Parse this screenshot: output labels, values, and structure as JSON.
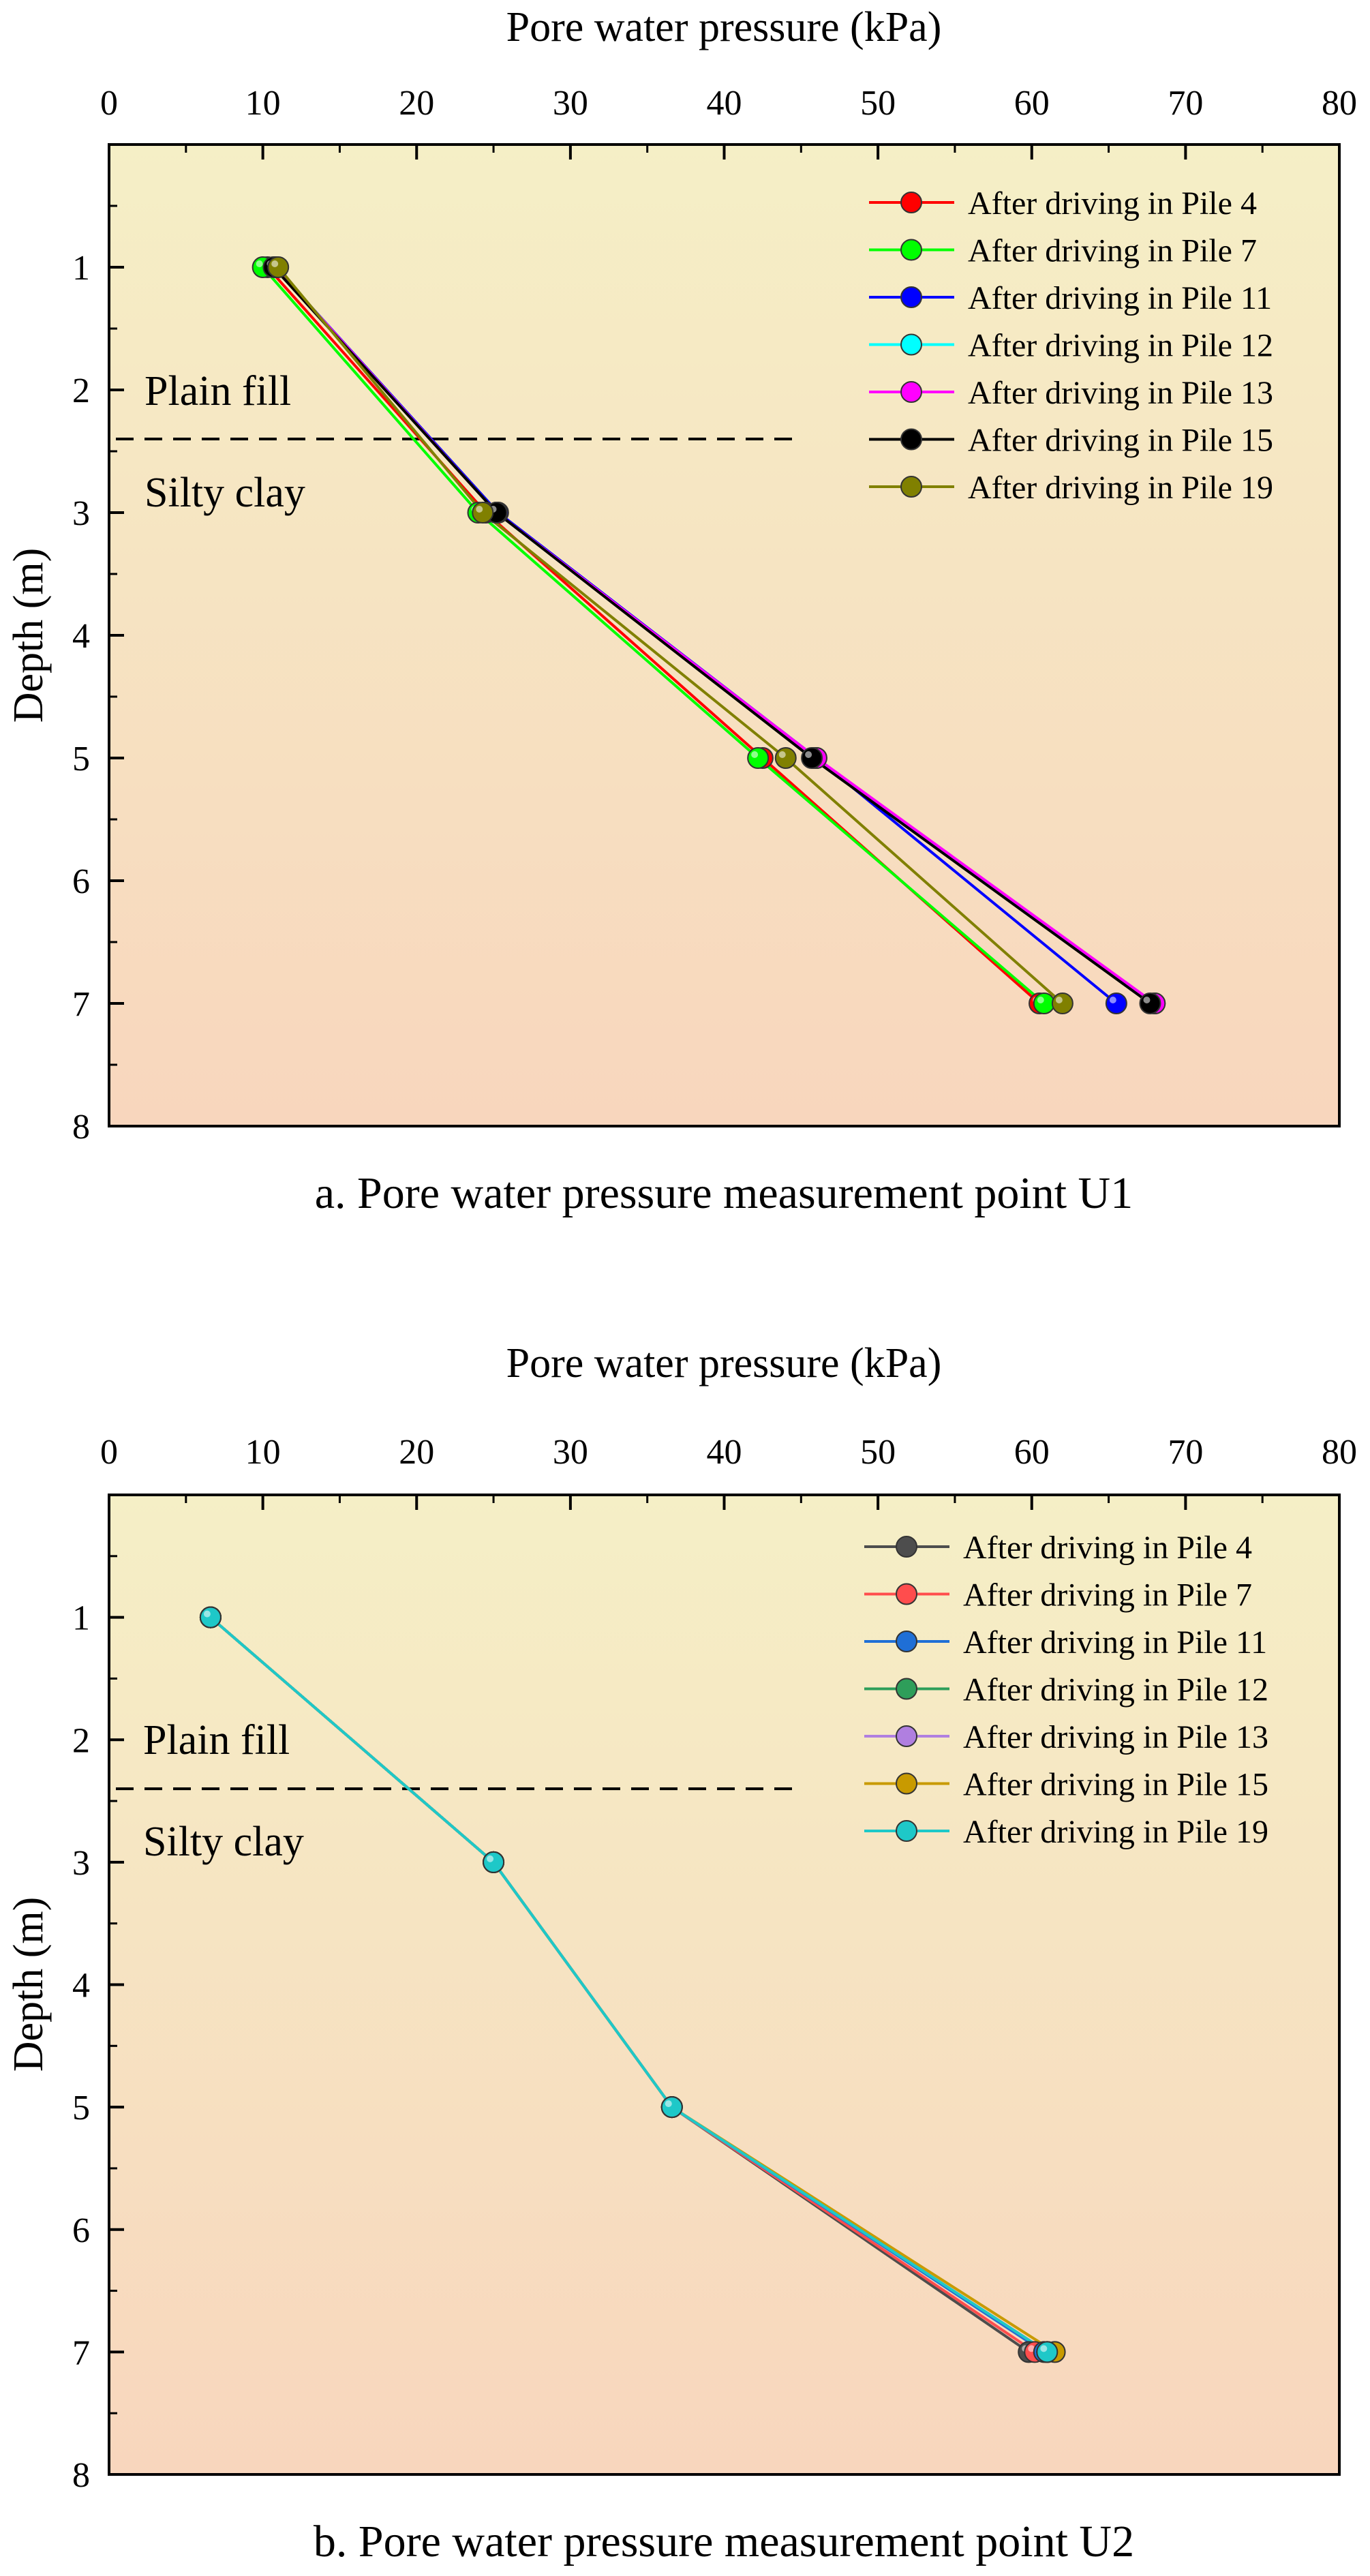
{
  "chart_data": [
    {
      "type": "line",
      "caption": "a. Pore water pressure measurement point U1",
      "xlabel": "Pore water pressure (kPa)",
      "ylabel": "Depth (m)",
      "xlim": [
        0,
        80
      ],
      "ylim": [
        8,
        0
      ],
      "x_axis_position": "top",
      "y_axis_inverted": true,
      "xticks": [
        "0",
        "10",
        "20",
        "30",
        "40",
        "50",
        "60",
        "70",
        "80"
      ],
      "yticks": [
        "1",
        "2",
        "3",
        "4",
        "5",
        "6",
        "7",
        "8"
      ],
      "background_gradient": [
        "#f5efc6",
        "#f8d6bd"
      ],
      "legend_position": "top-right",
      "layer_labels": [
        "Plain fill",
        "Silty clay"
      ],
      "layer_boundary_depth": 2.4,
      "series": [
        {
          "name": "After driving in Pile 4",
          "color": "#ff0000",
          "x": [
            10.3,
            24.5,
            42.5,
            60.5
          ],
          "y": [
            1,
            3,
            5,
            7
          ]
        },
        {
          "name": "After driving in Pile 7",
          "color": "#00ff00",
          "x": [
            10.0,
            24.0,
            42.2,
            60.8
          ],
          "y": [
            1,
            3,
            5,
            7
          ]
        },
        {
          "name": "After driving in Pile 11",
          "color": "#0000ff",
          "x": [
            10.8,
            25.3,
            46.0,
            65.5
          ],
          "y": [
            1,
            3,
            5,
            7
          ]
        },
        {
          "name": "After driving in Pile 12",
          "color": "#00ffff",
          "x": [
            10.8,
            25.2,
            45.8,
            68.0
          ],
          "y": [
            1,
            3,
            5,
            7
          ]
        },
        {
          "name": "After driving in Pile 13",
          "color": "#ff00ff",
          "x": [
            10.8,
            25.2,
            46.0,
            68.0
          ],
          "y": [
            1,
            3,
            5,
            7
          ]
        },
        {
          "name": "After driving in Pile 15",
          "color": "#000000",
          "x": [
            10.7,
            25.2,
            45.7,
            67.7
          ],
          "y": [
            1,
            3,
            5,
            7
          ]
        },
        {
          "name": "After driving in Pile 19",
          "color": "#808000",
          "x": [
            11.0,
            24.3,
            44.0,
            62.0
          ],
          "y": [
            1,
            3,
            5,
            7
          ]
        }
      ]
    },
    {
      "type": "line",
      "caption": "b. Pore water pressure measurement point U2",
      "xlabel": "Pore water pressure (kPa)",
      "ylabel": "Depth (m)",
      "xlim": [
        0,
        80
      ],
      "ylim": [
        8,
        0
      ],
      "x_axis_position": "top",
      "y_axis_inverted": true,
      "xticks": [
        "0",
        "10",
        "20",
        "30",
        "40",
        "50",
        "60",
        "70",
        "80"
      ],
      "yticks": [
        "1",
        "2",
        "3",
        "4",
        "5",
        "6",
        "7",
        "8"
      ],
      "background_gradient": [
        "#f5efc6",
        "#f8d6bd"
      ],
      "legend_position": "top-right",
      "layer_labels": [
        "Plain fill",
        "Silty clay"
      ],
      "layer_boundary_depth": 2.4,
      "series": [
        {
          "name": "After driving in Pile 4",
          "color": "#4d4d4d",
          "x": [
            6.6,
            25.0,
            36.6,
            59.8
          ],
          "y": [
            1,
            3,
            5,
            7
          ]
        },
        {
          "name": "After driving in Pile 7",
          "color": "#ff4d4d",
          "x": [
            6.6,
            25.0,
            36.6,
            60.2
          ],
          "y": [
            1,
            3,
            5,
            7
          ]
        },
        {
          "name": "After driving in Pile 11",
          "color": "#1f6fd6",
          "x": [
            6.6,
            25.0,
            36.6,
            60.8
          ],
          "y": [
            1,
            3,
            5,
            7
          ]
        },
        {
          "name": "After driving in Pile 12",
          "color": "#2e9e5a",
          "x": [
            6.6,
            25.0,
            36.6,
            61.0
          ],
          "y": [
            1,
            3,
            5,
            7
          ]
        },
        {
          "name": "After driving in Pile 13",
          "color": "#b07fe0",
          "x": [
            6.6,
            25.0,
            36.6,
            61.0
          ],
          "y": [
            1,
            3,
            5,
            7
          ]
        },
        {
          "name": "After driving in Pile 15",
          "color": "#c89a00",
          "x": [
            6.6,
            25.0,
            36.6,
            61.5
          ],
          "y": [
            1,
            3,
            5,
            7
          ]
        },
        {
          "name": "After driving in Pile 19",
          "color": "#1ec8c8",
          "x": [
            6.6,
            25.0,
            36.6,
            61.0
          ],
          "y": [
            1,
            3,
            5,
            7
          ]
        }
      ]
    }
  ]
}
